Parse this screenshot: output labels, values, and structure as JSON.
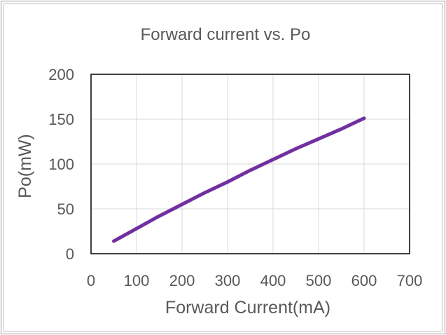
{
  "chart_data": {
    "type": "line",
    "title": "Forward current vs. Po",
    "xlabel": "Forward Current(mA)",
    "ylabel": "Po(mW)",
    "xlim": [
      0,
      700
    ],
    "ylim": [
      0,
      200
    ],
    "x_ticks": [
      0,
      100,
      200,
      300,
      400,
      500,
      600,
      700
    ],
    "y_ticks": [
      0,
      50,
      100,
      150,
      200
    ],
    "grid": true,
    "legend": "none",
    "series": [
      {
        "color": "#7030a0",
        "x": [
          50,
          100,
          150,
          200,
          250,
          300,
          350,
          400,
          450,
          500,
          550,
          600
        ],
        "y": [
          14,
          28,
          42,
          55,
          68,
          80,
          93,
          105,
          117,
          128,
          139,
          151
        ]
      }
    ]
  }
}
